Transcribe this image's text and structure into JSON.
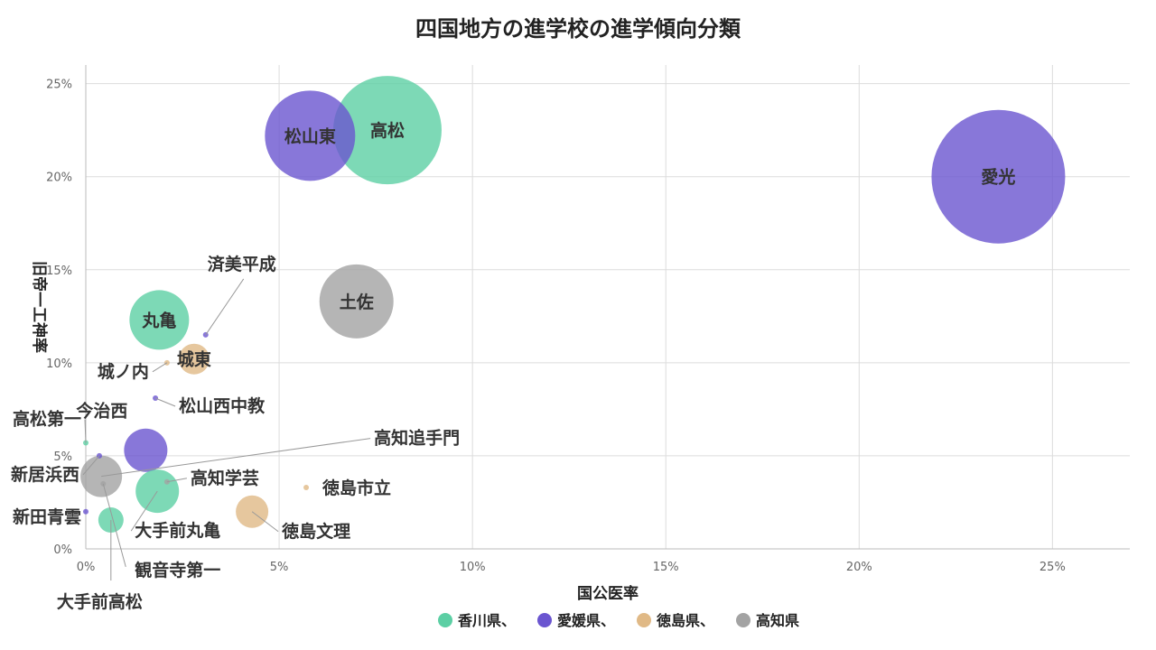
{
  "chart_data": {
    "type": "scatter",
    "title": "四国地方の進学校の進学傾向分類",
    "xlabel": "国公医率",
    "ylabel": "旧帝一工神率",
    "xlim": [
      0,
      27
    ],
    "ylim": [
      0,
      26
    ],
    "x_ticks": [
      0,
      5,
      10,
      15,
      20,
      25
    ],
    "y_ticks": [
      0,
      5,
      10,
      15,
      20,
      25
    ],
    "x_tick_labels": [
      "0%",
      "5%",
      "10%",
      "15%",
      "20%",
      "25%"
    ],
    "y_tick_labels": [
      "0%",
      "5%",
      "10%",
      "15%",
      "20%",
      "25%"
    ],
    "grid": true,
    "legend_position": "bottom",
    "legend": [
      {
        "label": "香川県、",
        "color": "#5ccfa4"
      },
      {
        "label": "愛媛県、",
        "color": "#6a55d0"
      },
      {
        "label": "徳島県、",
        "color": "#e0b986"
      },
      {
        "label": "高知県",
        "color": "#a3a3a3"
      }
    ],
    "points": [
      {
        "name": "愛光",
        "pref": 1,
        "x": 23.6,
        "y": 20.0,
        "size": 74
      },
      {
        "name": "高松",
        "pref": 0,
        "x": 7.8,
        "y": 22.5,
        "size": 60
      },
      {
        "name": "松山東",
        "pref": 1,
        "x": 5.8,
        "y": 22.2,
        "size": 50
      },
      {
        "name": "土佐",
        "pref": 3,
        "x": 7.0,
        "y": 13.3,
        "size": 41
      },
      {
        "name": "丸亀",
        "pref": 0,
        "x": 1.9,
        "y": 12.3,
        "size": 33
      },
      {
        "name": "城東",
        "pref": 2,
        "x": 2.8,
        "y": 10.2,
        "size": 17
      },
      {
        "name": "済美平成",
        "pref": 1,
        "x": 3.1,
        "y": 11.5,
        "size": 3
      },
      {
        "name": "城ノ内",
        "pref": 2,
        "x": 2.1,
        "y": 10.0,
        "size": 3
      },
      {
        "name": "松山西中教",
        "pref": 1,
        "x": 1.8,
        "y": 8.1,
        "size": 3
      },
      {
        "name": "今治西",
        "pref": 1,
        "x": 1.55,
        "y": 5.3,
        "size": 24
      },
      {
        "name": "高松第一",
        "pref": 0,
        "x": 0.0,
        "y": 5.7,
        "size": 3
      },
      {
        "name": "新居浜西",
        "pref": 1,
        "x": 0.35,
        "y": 5.0,
        "size": 3
      },
      {
        "name": "高知追手門",
        "pref": 3,
        "x": 0.4,
        "y": 3.9,
        "size": 23
      },
      {
        "name": "高知学芸",
        "pref": 3,
        "x": 2.1,
        "y": 3.6,
        "size": 3
      },
      {
        "name": "徳島市立",
        "pref": 2,
        "x": 5.7,
        "y": 3.3,
        "size": 3
      },
      {
        "name": "観音寺第一",
        "pref": 3,
        "x": 0.45,
        "y": 3.5,
        "size": 3
      },
      {
        "name": "大手前丸亀",
        "pref": 0,
        "x": 1.85,
        "y": 3.1,
        "size": 24
      },
      {
        "name": "徳島文理",
        "pref": 2,
        "x": 4.3,
        "y": 2.0,
        "size": 18
      },
      {
        "name": "新田青雲",
        "pref": 1,
        "x": 0.0,
        "y": 2.0,
        "size": 3
      },
      {
        "name": "大手前高松",
        "pref": 0,
        "x": 0.65,
        "y": 1.55,
        "size": 14
      }
    ]
  }
}
